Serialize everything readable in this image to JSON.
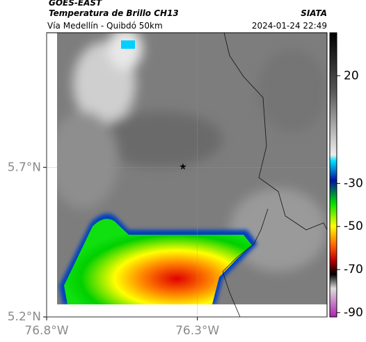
{
  "header": {
    "title": "GOES-EAST",
    "subtitle": "Temperatura de Brillo CH13",
    "source": "SIATA",
    "route": "Vía Medellín - Quibdó 50km",
    "timestamp": "2024-01-24 22:49"
  },
  "map": {
    "latlim": [
      5.2,
      6.15
    ],
    "lonlim": [
      -76.8,
      -75.87
    ],
    "lat_ticks": [
      {
        "value": 5.7,
        "label": "5.7°N"
      },
      {
        "value": 5.2,
        "label": "5.2°N"
      }
    ],
    "lon_ticks": [
      {
        "value": -76.8,
        "label": "76.8°W"
      },
      {
        "value": -76.3,
        "label": "76.3°W"
      }
    ]
  },
  "colorbar": {
    "lim": [
      -92,
      40
    ],
    "ticks": [
      20,
      -30,
      -50,
      -70,
      -90
    ]
  }
}
